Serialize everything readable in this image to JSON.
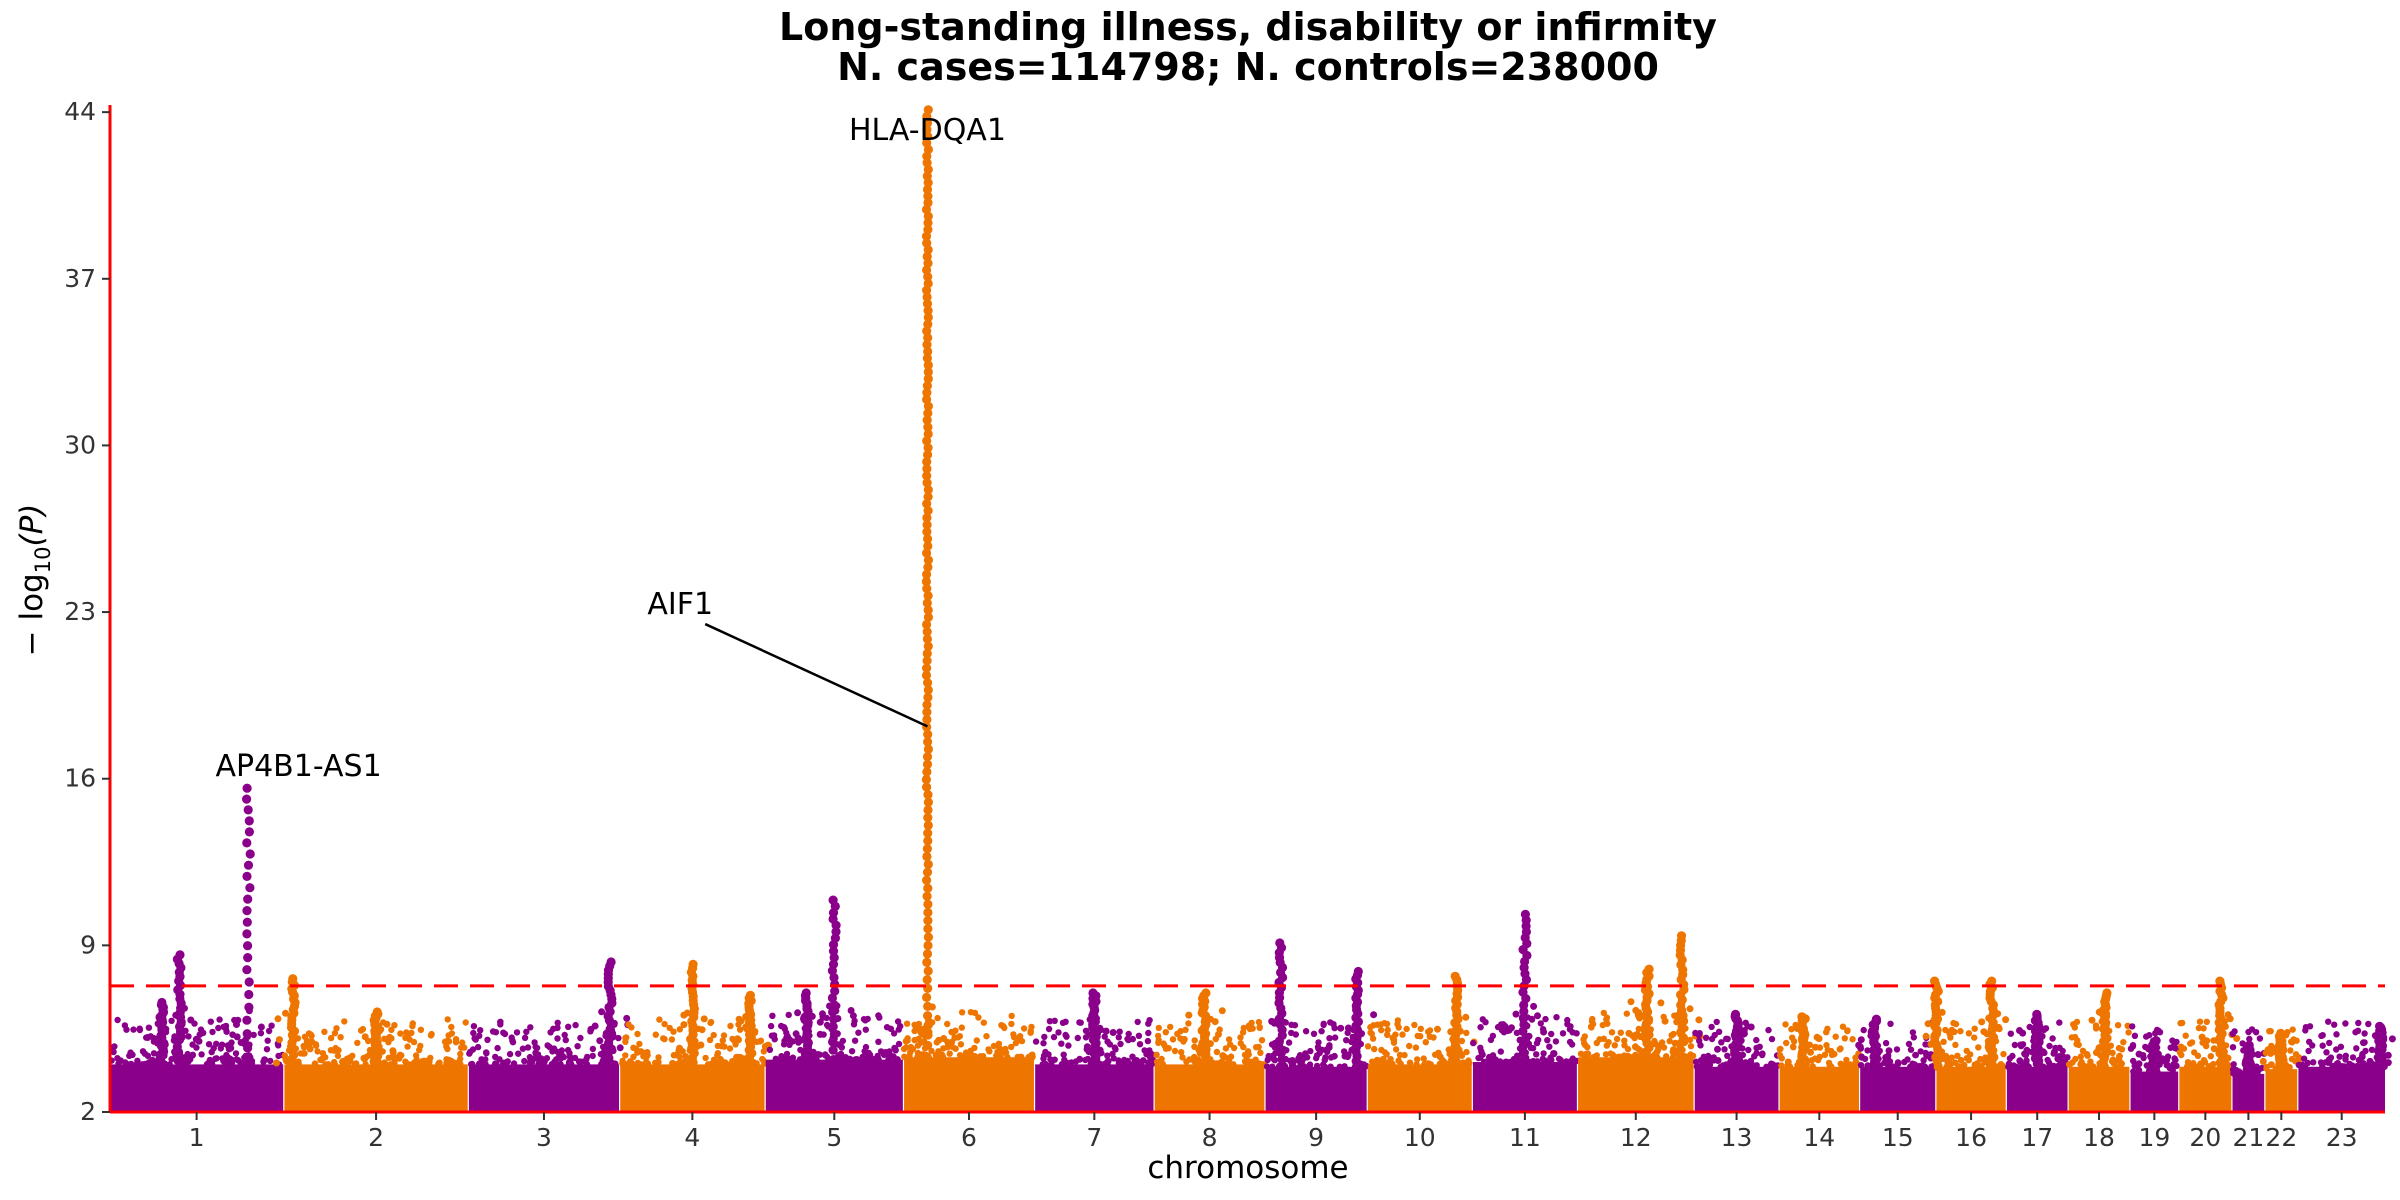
{
  "chart_data": {
    "type": "scatter",
    "title": "Long-standing illness, disability or infirmity",
    "subtitle": "N. cases=114798; N. controls=238000",
    "xlabel": "chromosome",
    "ylabel_base": "− log",
    "ylabel_sub": "10",
    "ylabel_tail": "(P)",
    "ylim": [
      2,
      44.3
    ],
    "yticks": [
      2,
      9,
      16,
      23,
      30,
      37,
      44
    ],
    "significance_line": 7.3,
    "colors": {
      "odd": "#8B008B",
      "even": "#EE7600",
      "axis": "#FF0000",
      "threshold": "#FF0000"
    },
    "chromosomes": [
      {
        "label": "1",
        "width": 1.2,
        "background": 4.0,
        "peaks": [
          {
            "pos": 0.4,
            "max": 8.6
          },
          {
            "pos": 0.8,
            "max": 15.6
          },
          {
            "pos": 0.3,
            "max": 6.6
          }
        ]
      },
      {
        "label": "2",
        "width": 1.27,
        "background": 4.0,
        "peaks": [
          {
            "pos": 0.05,
            "max": 7.6
          },
          {
            "pos": 0.5,
            "max": 6.2
          }
        ]
      },
      {
        "label": "3",
        "width": 1.04,
        "background": 4.0,
        "peaks": [
          {
            "pos": 0.94,
            "max": 8.3
          }
        ]
      },
      {
        "label": "4",
        "width": 1.0,
        "background": 4.0,
        "peaks": [
          {
            "pos": 0.5,
            "max": 8.2
          },
          {
            "pos": 0.9,
            "max": 6.9
          }
        ]
      },
      {
        "label": "5",
        "width": 0.95,
        "background": 4.2,
        "peaks": [
          {
            "pos": 0.5,
            "max": 10.9
          },
          {
            "pos": 0.3,
            "max": 7.0
          }
        ]
      },
      {
        "label": "6",
        "width": 0.9,
        "background": 4.3,
        "peaks": [
          {
            "pos": 0.18,
            "max": 44.1
          }
        ]
      },
      {
        "label": "7",
        "width": 0.82,
        "background": 4.0,
        "peaks": [
          {
            "pos": 0.5,
            "max": 7.0
          }
        ]
      },
      {
        "label": "8",
        "width": 0.76,
        "background": 4.0,
        "peaks": [
          {
            "pos": 0.45,
            "max": 7.0
          }
        ]
      },
      {
        "label": "9",
        "width": 0.7,
        "background": 3.9,
        "peaks": [
          {
            "pos": 0.15,
            "max": 9.1
          },
          {
            "pos": 0.9,
            "max": 7.9
          }
        ]
      },
      {
        "label": "10",
        "width": 0.72,
        "background": 4.0,
        "peaks": [
          {
            "pos": 0.85,
            "max": 7.7
          }
        ]
      },
      {
        "label": "11",
        "width": 0.72,
        "background": 4.1,
        "peaks": [
          {
            "pos": 0.5,
            "max": 10.3
          }
        ]
      },
      {
        "label": "12",
        "width": 0.8,
        "background": 4.3,
        "peaks": [
          {
            "pos": 0.6,
            "max": 8.0
          },
          {
            "pos": 0.9,
            "max": 9.4
          }
        ]
      },
      {
        "label": "13",
        "width": 0.58,
        "background": 3.9,
        "peaks": [
          {
            "pos": 0.5,
            "max": 6.1
          }
        ]
      },
      {
        "label": "14",
        "width": 0.55,
        "background": 3.9,
        "peaks": [
          {
            "pos": 0.3,
            "max": 6.0
          }
        ]
      },
      {
        "label": "15",
        "width": 0.52,
        "background": 3.9,
        "peaks": [
          {
            "pos": 0.2,
            "max": 5.9
          }
        ]
      },
      {
        "label": "16",
        "width": 0.48,
        "background": 3.9,
        "peaks": [
          {
            "pos": 0.0,
            "max": 7.5
          },
          {
            "pos": 0.8,
            "max": 7.5
          }
        ]
      },
      {
        "label": "17",
        "width": 0.42,
        "background": 3.9,
        "peaks": [
          {
            "pos": 0.5,
            "max": 6.1
          }
        ]
      },
      {
        "label": "18",
        "width": 0.42,
        "background": 3.9,
        "peaks": [
          {
            "pos": 0.6,
            "max": 7.0
          }
        ]
      },
      {
        "label": "19",
        "width": 0.33,
        "background": 3.7,
        "peaks": [
          {
            "pos": 0.5,
            "max": 5.0
          }
        ]
      },
      {
        "label": "20",
        "width": 0.36,
        "background": 3.9,
        "peaks": [
          {
            "pos": 0.8,
            "max": 7.5
          }
        ]
      },
      {
        "label": "21",
        "width": 0.22,
        "background": 3.6,
        "peaks": [
          {
            "pos": 0.5,
            "max": 4.8
          }
        ]
      },
      {
        "label": "22",
        "width": 0.22,
        "background": 3.8,
        "peaks": [
          {
            "pos": 0.5,
            "max": 5.3
          }
        ]
      },
      {
        "label": "23",
        "width": 0.6,
        "background": 3.9,
        "peaks": [
          {
            "pos": 0.95,
            "max": 5.6
          }
        ]
      }
    ],
    "annotations": [
      {
        "text": "AP4B1-AS1",
        "chrom": 0,
        "pos": 0.8,
        "y": 15.6
      },
      {
        "text": "HLA-DQA1",
        "chrom": 5,
        "pos": 0.18,
        "y": 44.1
      },
      {
        "text": "AIF1",
        "chrom": 5,
        "pos": 0.18,
        "y": 18.2,
        "label_chrom": 3,
        "label_pos": 0.0,
        "label_y": 23.0
      }
    ]
  }
}
